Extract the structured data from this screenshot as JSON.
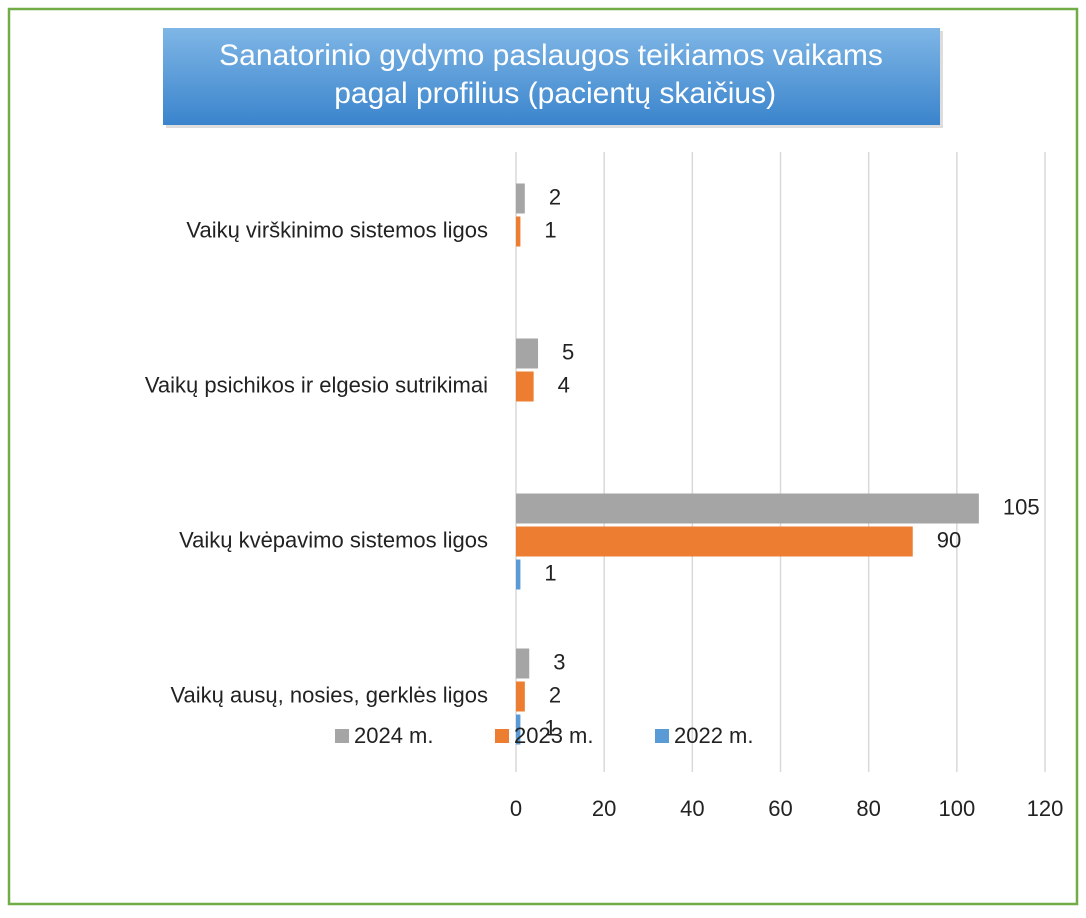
{
  "chart_data": {
    "type": "bar",
    "orientation": "horizontal",
    "title": "Sanatorinio gydymo paslaugos teikiamos vaikams pagal profilius (pacientų skaičius)",
    "categories": [
      "Vaikų virškinimo sistemos ligos",
      "Vaikų psichikos ir elgesio sutrikimai",
      "Vaikų kvėpavimo sistemos ligos",
      "Vaikų ausų, nosies, gerklės ligos"
    ],
    "series": [
      {
        "name": "2024 m.",
        "color": "#a5a5a5",
        "values": [
          2,
          5,
          105,
          3
        ]
      },
      {
        "name": "2023 m.",
        "color": "#ed7d31",
        "values": [
          1,
          4,
          90,
          2
        ]
      },
      {
        "name": "2022 m.",
        "color": "#5b9bd5",
        "values": [
          null,
          null,
          1,
          1
        ]
      }
    ],
    "xlim": [
      0,
      120
    ],
    "xticks": [
      0,
      20,
      40,
      60,
      80,
      100,
      120
    ],
    "grid": true,
    "legend": "bottom"
  }
}
